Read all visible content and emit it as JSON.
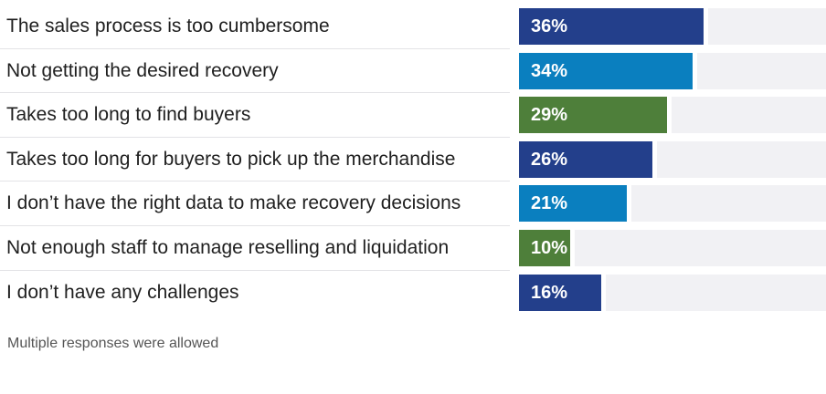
{
  "chart_data": {
    "type": "bar",
    "orientation": "horizontal",
    "categories": [
      "The sales process is too cumbersome",
      "Not getting the desired recovery",
      "Takes too long to find buyers",
      "Takes too long for buyers to pick up the merchandise",
      "I don’t have the right data to make recovery decisions",
      "Not enough staff to manage reselling and liquidation",
      "I don’t have any challenges"
    ],
    "values": [
      36,
      34,
      29,
      26,
      21,
      10,
      16
    ],
    "value_labels": [
      "36%",
      "34%",
      "29%",
      "26%",
      "21%",
      "10%",
      "16%"
    ],
    "bar_colors": [
      "#233f8b",
      "#0a7fbf",
      "#4e7f3a",
      "#233f8b",
      "#0a7fbf",
      "#4e7f3a",
      "#233f8b"
    ],
    "track_color": "#f1f1f4",
    "xlim": [
      0,
      60
    ],
    "gridlines": false,
    "title": "",
    "xlabel": "",
    "ylabel": ""
  },
  "footnote": "Multiple responses were allowed"
}
